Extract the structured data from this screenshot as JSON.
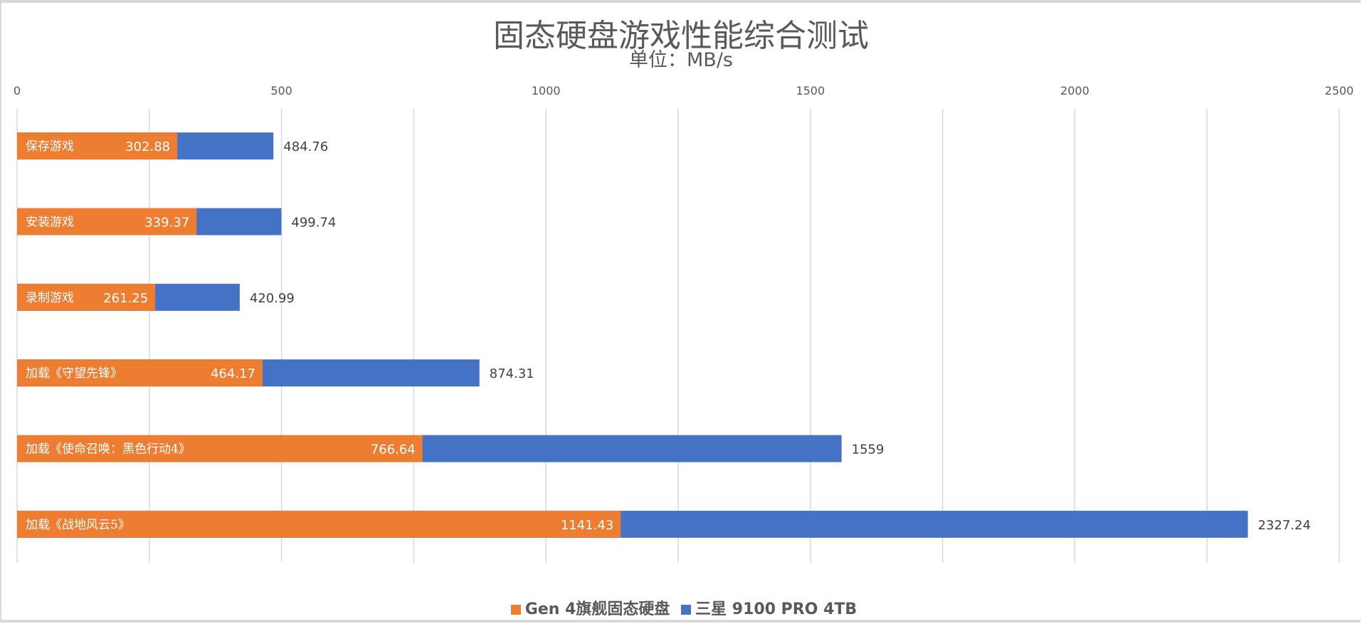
{
  "chart_data": {
    "type": "bar",
    "orientation": "horizontal",
    "title": "固态硬盘游戏性能综合测试",
    "subtitle": "单位：MB/s",
    "xlim": [
      0,
      2500
    ],
    "xticks": [
      0,
      500,
      1000,
      1500,
      2000,
      2500
    ],
    "grid": true,
    "legend_position": "bottom",
    "categories": [
      "保存游戏",
      "安装游戏",
      "录制游戏",
      "加载《守望先锋》",
      "加载《使命召唤：黑色行动4》",
      "加载《战地风云5》"
    ],
    "series": [
      {
        "name": "Gen 4旗舰固态硬盘",
        "color": "#ED7D31",
        "values": [
          302.88,
          339.37,
          261.25,
          464.17,
          766.64,
          1141.43
        ],
        "labels": [
          "302.88",
          "339.37",
          "261.25",
          "464.17",
          "766.64",
          "1141.43"
        ]
      },
      {
        "name": "三星 9100 PRO 4TB",
        "color": "#4472C4",
        "values": [
          484.76,
          499.74,
          420.99,
          874.31,
          1559,
          2327.24
        ],
        "labels": [
          "484.76",
          "499.74",
          "420.99",
          "874.31",
          "1559",
          "2327.24"
        ]
      }
    ]
  }
}
